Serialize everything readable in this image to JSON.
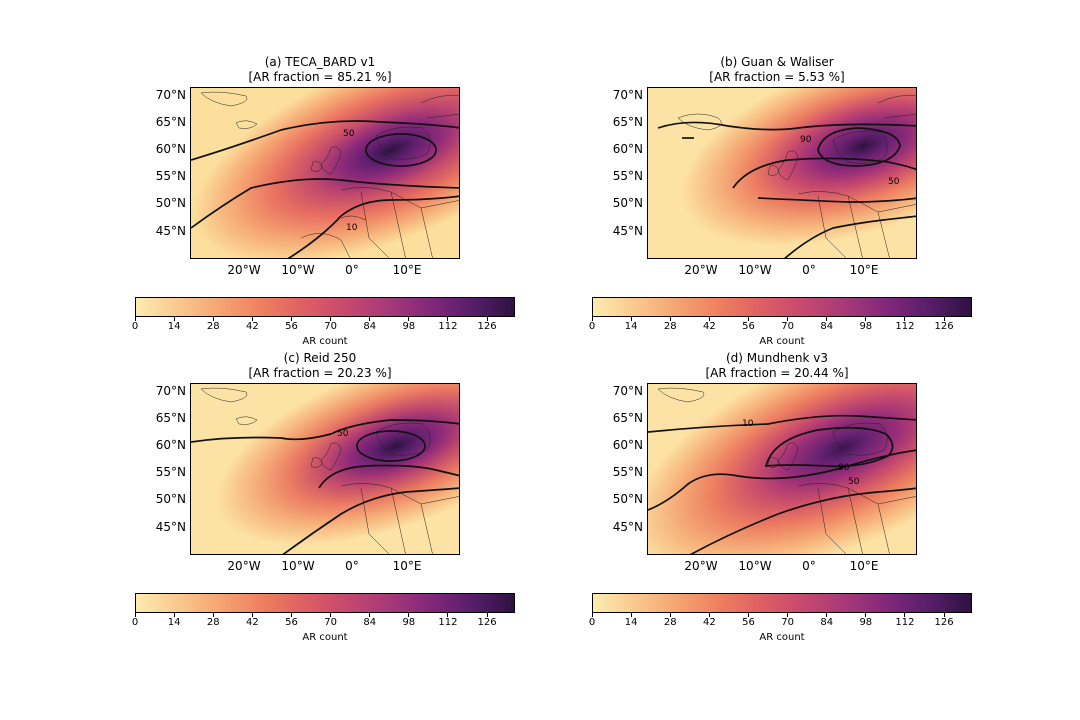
{
  "panels": [
    {
      "title": "(a) TECA_BARD v1",
      "subtitle": "[AR fraction = 85.21 %]",
      "contours": [
        {
          "label": "50"
        },
        {
          "label": "10"
        }
      ]
    },
    {
      "title": "(b) Guan & Waliser",
      "subtitle": "[AR fraction = 5.53 %]",
      "contours": [
        {
          "label": "90"
        },
        {
          "label": "50"
        }
      ]
    },
    {
      "title": "(c) Reid 250",
      "subtitle": "[AR fraction = 20.23 %]",
      "contours": [
        {
          "label": "50"
        }
      ]
    },
    {
      "title": "(d) Mundhenk v3",
      "subtitle": "[AR fraction = 20.44 %]",
      "contours": [
        {
          "label": "10"
        },
        {
          "label": "90"
        },
        {
          "label": "50"
        }
      ]
    }
  ],
  "lat_labels": [
    "70°N",
    "65°N",
    "60°N",
    "55°N",
    "50°N",
    "45°N"
  ],
  "lon_labels": [
    "20°W",
    "10°W",
    "0°",
    "10°E"
  ],
  "colorbar": {
    "label": "AR count",
    "ticks": [
      "0",
      "14",
      "28",
      "42",
      "56",
      "70",
      "84",
      "98",
      "112",
      "126"
    ],
    "range": [
      0,
      136
    ],
    "colormap": "magma_r"
  }
}
